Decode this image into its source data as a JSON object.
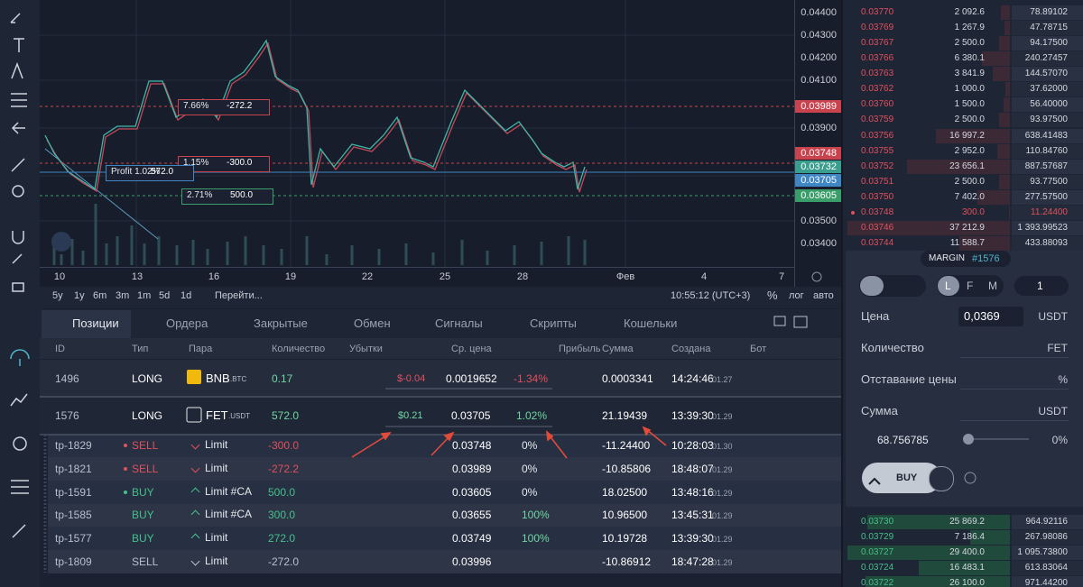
{
  "chart": {
    "price_labels": [
      "0.04400",
      "0.04300",
      "0.04200",
      "0.04100",
      "0.03900",
      "0.03500",
      "0.03400"
    ],
    "price_tags": [
      {
        "text": "0.03989",
        "color": "#c9434f"
      },
      {
        "text": "0.03748",
        "color": "#c9434f"
      },
      {
        "text": "0.03732",
        "color": "#3a9e8e"
      },
      {
        "text": "0.03705",
        "color": "#3f86c4"
      },
      {
        "text": "0.03605",
        "color": "#3a9e6a"
      }
    ],
    "date_labels": [
      "10",
      "13",
      "16",
      "19",
      "22",
      "25",
      "28",
      "Фев",
      "4",
      "7"
    ],
    "orders": [
      {
        "percent": "7.66%",
        "amount": "-272.2",
        "color": "#c9434f"
      },
      {
        "percent": "1.15%",
        "amount": "-300.0",
        "color": "#c9434f"
      },
      {
        "percent": "Profit 1.02%",
        "amount": "572.0",
        "color": "#3f86c4"
      },
      {
        "percent": "2.71%",
        "amount": "500.0",
        "color": "#3a9e6a"
      }
    ],
    "ranges": [
      "5y",
      "1y",
      "6m",
      "3m",
      "1m",
      "5d",
      "1d"
    ],
    "goto": "Перейти...",
    "clock": "10:55:12 (UTC+3)",
    "scale_options": [
      "%",
      "лог",
      "авто"
    ]
  },
  "tabs": [
    "Позиции",
    "Ордера",
    "Закрытые",
    "Обмен",
    "Сигналы",
    "Скрипты",
    "Кошельки"
  ],
  "table": {
    "headers": [
      "ID",
      "Тип",
      "Пара",
      "Количество",
      "Убытки",
      "Ср. цена",
      "Прибыль",
      "Сумма",
      "Создана",
      "Бот"
    ],
    "positions": [
      {
        "id": "1496",
        "type": "LONG",
        "pair": "BNB",
        "quote": ".BTC",
        "quantity": "0.17",
        "loss": "$-0.04",
        "avg_price": "0.0019652",
        "profit": "-1.34%",
        "sum": "0.0003341",
        "time": "14:24:46",
        "date": "01.27"
      },
      {
        "id": "1576",
        "type": "LONG",
        "pair": "FET",
        "quote": ".USDT",
        "quantity": "572.0",
        "loss": "$0.21",
        "avg_price": "0.03705",
        "profit": "1.02%",
        "sum": "21.19439",
        "time": "13:39:30",
        "date": "01.29"
      }
    ],
    "orders": [
      {
        "id": "tp-1829",
        "side": "SELL",
        "color": "#e0505e",
        "dot": true,
        "kind": "Limit",
        "quantity": "-300.0",
        "avg_price": "0.03748",
        "profit": "0%",
        "sum": "-11.24400",
        "time": "10:28:03",
        "date": "01.30"
      },
      {
        "id": "tp-1821",
        "side": "SELL",
        "color": "#e0505e",
        "dot": true,
        "kind": "Limit",
        "quantity": "-272.2",
        "avg_price": "0.03989",
        "profit": "0%",
        "sum": "-10.85806",
        "time": "18:48:07",
        "date": "01.29"
      },
      {
        "id": "tp-1591",
        "side": "BUY",
        "color": "#45c08a",
        "dot": true,
        "kind": "Limit #CA",
        "quantity": "500.0",
        "avg_price": "0.03605",
        "profit": "0%",
        "sum": "18.02500",
        "time": "13:48:16",
        "date": "01.29"
      },
      {
        "id": "tp-1585",
        "side": "BUY",
        "color": "#45c08a",
        "dot": false,
        "kind": "Limit #CA",
        "quantity": "300.0",
        "avg_price": "0.03655",
        "profit": "100%",
        "sum": "10.96500",
        "time": "13:45:31",
        "date": "01.29"
      },
      {
        "id": "tp-1577",
        "side": "BUY",
        "color": "#45c08a",
        "dot": false,
        "kind": "Limit",
        "quantity": "272.0",
        "avg_price": "0.03749",
        "profit": "100%",
        "sum": "10.19728",
        "time": "13:39:30",
        "date": "01.29"
      },
      {
        "id": "tp-1809",
        "side": "SELL",
        "color": "#b8bfcc",
        "dot": false,
        "kind": "Limit",
        "quantity": "-272.0",
        "avg_price": "0.03996",
        "sum": "-10.86912",
        "time": "18:47:28",
        "date": "01.29"
      }
    ]
  },
  "order_book": {
    "asks": [
      {
        "price": "0.03770",
        "amount": "2 092.6",
        "total": "78.89102"
      },
      {
        "price": "0.03769",
        "amount": "1 267.9",
        "total": "47.78715"
      },
      {
        "price": "0.03767",
        "amount": "2 500.0",
        "total": "94.17500"
      },
      {
        "price": "0.03766",
        "amount": "6 380.1",
        "total": "240.27457"
      },
      {
        "price": "0.03763",
        "amount": "3 841.9",
        "total": "144.57070"
      },
      {
        "price": "0.03762",
        "amount": "1 000.0",
        "total": "37.62000"
      },
      {
        "price": "0.03760",
        "amount": "1 500.0",
        "total": "56.40000"
      },
      {
        "price": "0.03759",
        "amount": "2 500.0",
        "total": "93.97500"
      },
      {
        "price": "0.03756",
        "amount": "16 997.2",
        "total": "638.41483"
      },
      {
        "price": "0.03755",
        "amount": "2 952.0",
        "total": "110.84760"
      },
      {
        "price": "0.03752",
        "amount": "23 656.1",
        "total": "887.57687"
      },
      {
        "price": "0.03751",
        "amount": "2 500.0",
        "total": "93.77500"
      },
      {
        "price": "0.03750",
        "amount": "7 402.0",
        "total": "277.57500"
      },
      {
        "price": "0.03748",
        "amount": "300.0",
        "total": "11.24400",
        "highlight": true
      },
      {
        "price": "0.03746",
        "amount": "37 212.9",
        "total": "1 393.99523"
      },
      {
        "price": "0.03744",
        "amount": "11 588.7",
        "total": "433.88093"
      }
    ],
    "bids": [
      {
        "price": "0.03730",
        "amount": "25 869.2",
        "total": "964.92116"
      },
      {
        "price": "0.03729",
        "amount": "7 186.4",
        "total": "267.98086"
      },
      {
        "price": "0.03727",
        "amount": "29 400.0",
        "total": "1 095.73800"
      },
      {
        "price": "0.03724",
        "amount": "16 483.1",
        "total": "613.83064"
      },
      {
        "price": "0.03722",
        "amount": "26 100.0",
        "total": "971.44200"
      }
    ]
  },
  "order_form": {
    "mode": "MARGIN",
    "position": "#1576",
    "leverage_modes": [
      "L",
      "F",
      "M"
    ],
    "leverage": "1",
    "fields": [
      {
        "label": "Цена",
        "value": "0,0369",
        "unit": "USDT"
      },
      {
        "label": "Количество",
        "unit": "FET"
      },
      {
        "label": "Отставание цены",
        "unit": "%"
      },
      {
        "label": "Сумма",
        "unit": "USDT"
      }
    ],
    "balance": "68.756785",
    "slider": "0%",
    "button": "BUY"
  }
}
